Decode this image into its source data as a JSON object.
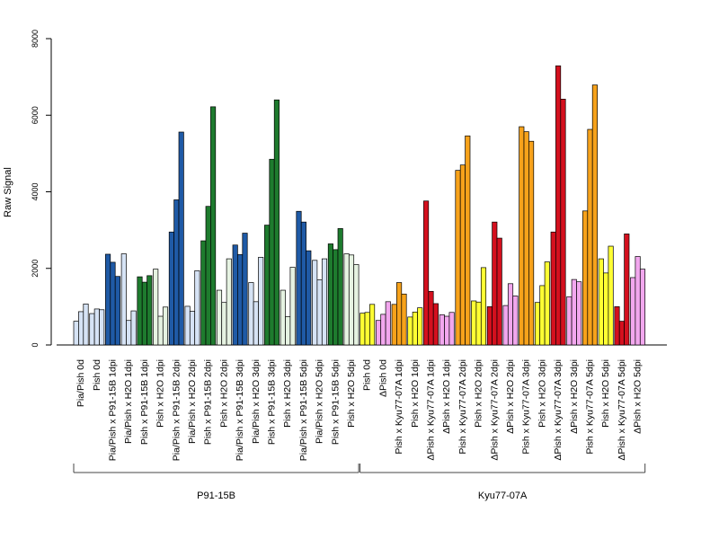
{
  "chart_data": {
    "type": "bar",
    "ylabel": "Raw Signal",
    "ylim": [
      0,
      8000
    ],
    "yticks": [
      0,
      2000,
      4000,
      6000,
      8000
    ],
    "colors": {
      "light_blue": "#d6e3f5",
      "dark_blue": "#1f5aa6",
      "dark_green": "#1e7b2e",
      "light_green": "#e6f3e2",
      "yellow": "#ffff33",
      "pink": "#f2a7ee",
      "orange": "#f7a21b",
      "red": "#d4101e"
    },
    "groups": [
      {
        "label": "Pia/Pish 0d",
        "color": "light_blue",
        "values": [
          620,
          870,
          1070
        ]
      },
      {
        "label": "Pish 0d",
        "color": "light_blue",
        "values": [
          820,
          940,
          920
        ]
      },
      {
        "label": "Pia/Pish x P91-15B 1dpi",
        "color": "dark_blue",
        "values": [
          2370,
          2160,
          1790
        ]
      },
      {
        "label": "Pia/Pish x H2O 1dpi",
        "color": "light_blue",
        "values": [
          2380,
          640,
          890
        ]
      },
      {
        "label": "Pish x P91-15B 1dpi",
        "color": "dark_green",
        "values": [
          1780,
          1640,
          1810
        ]
      },
      {
        "label": "Pish x H2O 1dpi",
        "color": "light_green",
        "values": [
          1980,
          750,
          990
        ]
      },
      {
        "label": "Pia/Pish x P91-15B 2dpi",
        "color": "dark_blue",
        "values": [
          2950,
          3790,
          5560
        ]
      },
      {
        "label": "Pia/Pish x H2O 2dpi",
        "color": "light_blue",
        "values": [
          1010,
          880,
          1940
        ]
      },
      {
        "label": "Pish x P91-15B 2dpi",
        "color": "dark_green",
        "values": [
          2720,
          3620,
          6220
        ]
      },
      {
        "label": "Pish x H2O 2dpi",
        "color": "light_green",
        "values": [
          1430,
          1110,
          2250
        ]
      },
      {
        "label": "Pia/Pish x P91-15B 3dpi",
        "color": "dark_blue",
        "values": [
          2610,
          2360,
          2920
        ]
      },
      {
        "label": "Pia/Pish x H2O 3dpi",
        "color": "light_blue",
        "values": [
          1630,
          1130,
          2290
        ]
      },
      {
        "label": "Pish x P91-15B 3dpi",
        "color": "dark_green",
        "values": [
          3130,
          4850,
          6400
        ]
      },
      {
        "label": "Pish x H2O 3dpi",
        "color": "light_green",
        "values": [
          1430,
          740,
          2030
        ]
      },
      {
        "label": "Pia/Pish x P91-15B 5dpi",
        "color": "dark_blue",
        "values": [
          3490,
          3210,
          2460
        ]
      },
      {
        "label": "Pia/Pish x H2O 5dpi",
        "color": "light_blue",
        "values": [
          2210,
          1700,
          2250
        ]
      },
      {
        "label": "Pish x P91-15B 5dpi",
        "color": "dark_green",
        "values": [
          2640,
          2490,
          3040
        ]
      },
      {
        "label": "Pish x H2O 5dpi",
        "color": "light_green",
        "values": [
          2380,
          2350,
          2100
        ]
      },
      {
        "label": "Pish 0d",
        "color": "yellow",
        "values": [
          830,
          850,
          1060
        ]
      },
      {
        "label": "ΔPish 0d",
        "color": "pink",
        "values": [
          640,
          800,
          1130
        ]
      },
      {
        "label": "Pish x Kyu77-07A 1dpi",
        "color": "orange",
        "values": [
          1060,
          1630,
          1330
        ]
      },
      {
        "label": "Pish x H2O 1dpi",
        "color": "yellow",
        "values": [
          730,
          860,
          970
        ]
      },
      {
        "label": "ΔPish x Kyu77-07A 1dpi",
        "color": "red",
        "values": [
          3760,
          1400,
          1080
        ]
      },
      {
        "label": "ΔPish x H2O 1dpi",
        "color": "pink",
        "values": [
          790,
          750,
          850
        ]
      },
      {
        "label": "Pish x Kyu77-07A 2dpi",
        "color": "orange",
        "values": [
          4560,
          4700,
          5460
        ]
      },
      {
        "label": "Pish x H2O 2dpi",
        "color": "yellow",
        "values": [
          1150,
          1120,
          2020
        ]
      },
      {
        "label": "ΔPish x Kyu77-07A 2dpi",
        "color": "red",
        "values": [
          1000,
          3210,
          2790
        ]
      },
      {
        "label": "ΔPish x H2O 2dpi",
        "color": "pink",
        "values": [
          1030,
          1600,
          1280
        ]
      },
      {
        "label": "Pish x Kyu77-07A 3dpi",
        "color": "orange",
        "values": [
          5700,
          5570,
          5320
        ]
      },
      {
        "label": "Pish x H2O 3dpi",
        "color": "yellow",
        "values": [
          1110,
          1550,
          2170
        ]
      },
      {
        "label": "ΔPish x Kyu77-07A 3dpi",
        "color": "red",
        "values": [
          2950,
          7290,
          6420
        ]
      },
      {
        "label": "ΔPish x H2O 3dpi",
        "color": "pink",
        "values": [
          1260,
          1710,
          1650
        ]
      },
      {
        "label": "Pish x Kyu77-07A 5dpi",
        "color": "orange",
        "values": [
          3500,
          5630,
          6790
        ]
      },
      {
        "label": "Pish x H2O 5dpi",
        "color": "yellow",
        "values": [
          2250,
          1880,
          2580
        ]
      },
      {
        "label": "ΔPish x Kyu77-07A 5dpi",
        "color": "red",
        "values": [
          1000,
          620,
          2900
        ]
      },
      {
        "label": "ΔPish x H2O 5dpi",
        "color": "pink",
        "values": [
          1760,
          2310,
          1980
        ]
      }
    ],
    "brackets": [
      {
        "label": "P91-15B",
        "from": 0,
        "to": 17
      },
      {
        "label": "Kyu77-07A",
        "from": 18,
        "to": 35
      }
    ]
  }
}
